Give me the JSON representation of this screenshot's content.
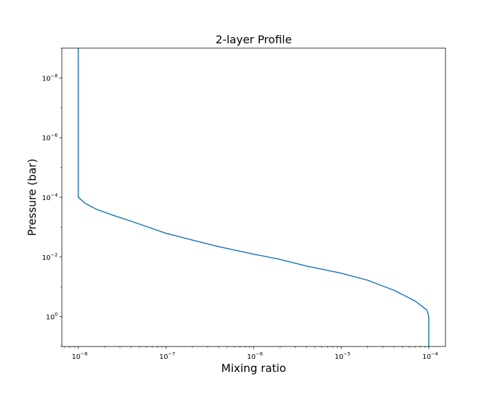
{
  "chart_data": {
    "type": "line",
    "title": "2-layer Profile",
    "xlabel": "Mixing ratio",
    "ylabel": "Pressure (bar)",
    "x_scale": "log",
    "y_scale": "log",
    "y_inverted": true,
    "xlim": [
      6.5e-09,
      0.000155
    ],
    "ylim": [
      10,
      1e-09
    ],
    "grid": false,
    "x_ticks": [
      {
        "base": "10",
        "exp": "−8"
      },
      {
        "base": "10",
        "exp": "−7"
      },
      {
        "base": "10",
        "exp": "−6"
      },
      {
        "base": "10",
        "exp": "−5"
      },
      {
        "base": "10",
        "exp": "−4"
      }
    ],
    "y_ticks": [
      {
        "base": "10",
        "exp": "−8"
      },
      {
        "base": "10",
        "exp": "−6"
      },
      {
        "base": "10",
        "exp": "−4"
      },
      {
        "base": "10",
        "exp": "−2"
      },
      {
        "base": "10",
        "exp": "0"
      }
    ],
    "series": [
      {
        "color": "#1f77b4",
        "points": [
          {
            "x": 1e-08,
            "y": 1e-09
          },
          {
            "x": 1e-08,
            "y": 1e-08
          },
          {
            "x": 1e-08,
            "y": 1e-06
          },
          {
            "x": 1e-08,
            "y": 0.0001
          },
          {
            "x": 1.2e-08,
            "y": 0.00016
          },
          {
            "x": 1.6e-08,
            "y": 0.00025
          },
          {
            "x": 2.5e-08,
            "y": 0.0004
          },
          {
            "x": 4e-08,
            "y": 0.00063
          },
          {
            "x": 6.3e-08,
            "y": 0.001
          },
          {
            "x": 1e-07,
            "y": 0.0016
          },
          {
            "x": 2e-07,
            "y": 0.0027
          },
          {
            "x": 4e-07,
            "y": 0.0045
          },
          {
            "x": 1e-06,
            "y": 0.008
          },
          {
            "x": 2e-06,
            "y": 0.012
          },
          {
            "x": 4e-06,
            "y": 0.02
          },
          {
            "x": 1e-05,
            "y": 0.035
          },
          {
            "x": 2e-05,
            "y": 0.06
          },
          {
            "x": 4e-05,
            "y": 0.13
          },
          {
            "x": 7e-05,
            "y": 0.3
          },
          {
            "x": 9.5e-05,
            "y": 0.6
          },
          {
            "x": 0.0001,
            "y": 1
          },
          {
            "x": 0.0001,
            "y": 10
          }
        ]
      }
    ]
  }
}
